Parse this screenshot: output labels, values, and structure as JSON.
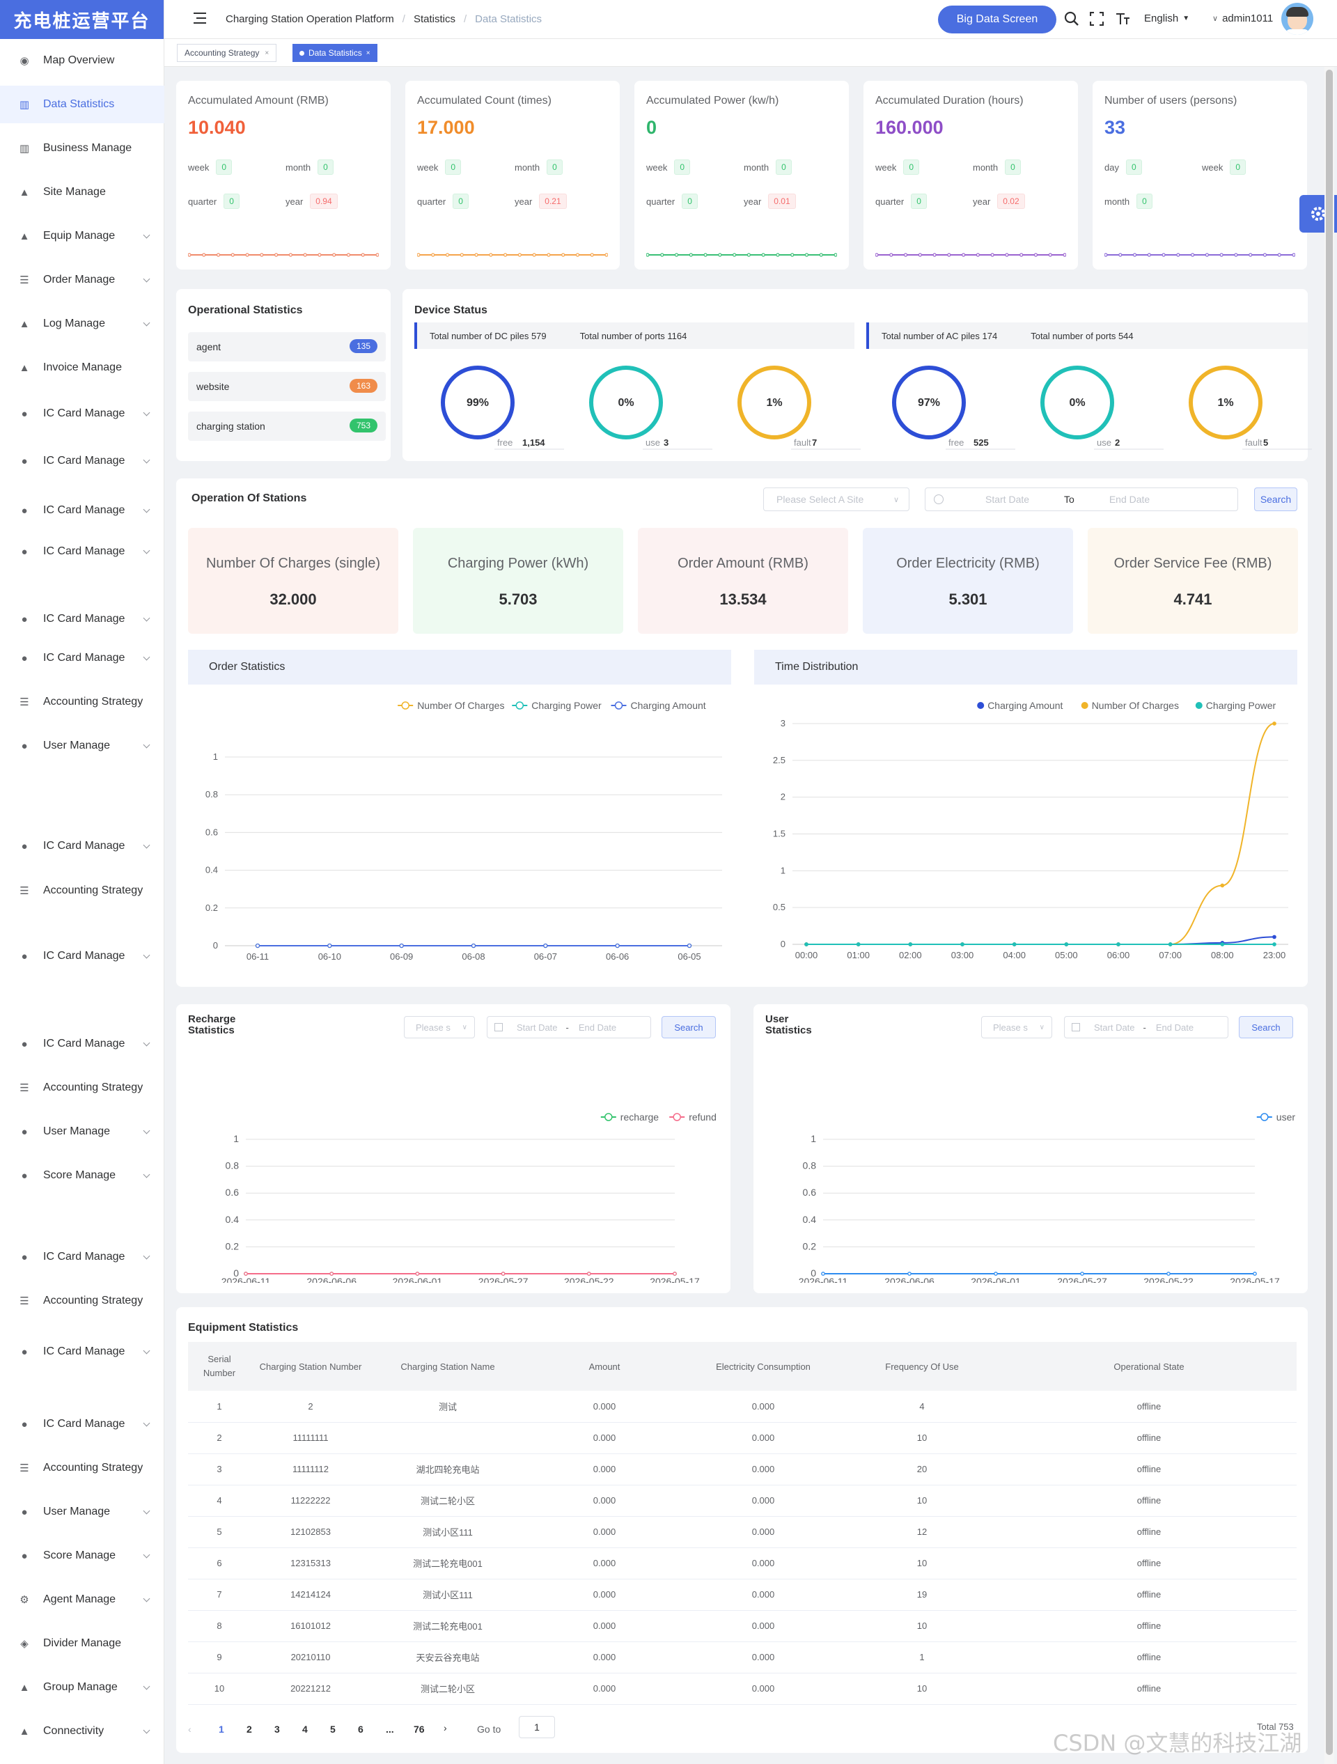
{
  "logo": "充电桩运营平台",
  "menu": [
    {
      "label": "Map Overview",
      "icon": "dashboard-icon",
      "chev": false,
      "y": 60
    },
    {
      "label": "Data Statistics",
      "icon": "chart-icon",
      "chev": false,
      "y": 123,
      "active": true
    },
    {
      "label": "Business Manage",
      "icon": "chart-icon",
      "chev": false,
      "y": 186
    },
    {
      "label": "Site Manage",
      "icon": "site-icon",
      "chev": false,
      "y": 249
    },
    {
      "label": "Equip Manage",
      "icon": "site-icon",
      "chev": true,
      "y": 312
    },
    {
      "label": "Order Manage",
      "icon": "list-icon",
      "chev": true,
      "y": 375
    },
    {
      "label": "Log Manage",
      "icon": "site-icon",
      "chev": true,
      "y": 438
    },
    {
      "label": "Invoice Manage",
      "icon": "site-icon",
      "chev": false,
      "y": 501
    },
    {
      "label": "IC Card Manage",
      "icon": "user-icon",
      "chev": true,
      "y": 567
    },
    {
      "label": "IC Card Manage",
      "icon": "user-icon",
      "chev": true,
      "y": 635
    },
    {
      "label": "IC Card Manage",
      "icon": "user-icon",
      "chev": true,
      "y": 706
    },
    {
      "label": "IC Card Manage",
      "icon": "user-icon",
      "chev": true,
      "y": 765
    },
    {
      "label": "IC Card Manage",
      "icon": "user-icon",
      "chev": true,
      "y": 862
    },
    {
      "label": "IC Card Manage",
      "icon": "user-icon",
      "chev": true,
      "y": 918
    },
    {
      "label": "Accounting Strategy",
      "icon": "list-icon",
      "chev": false,
      "y": 981
    },
    {
      "label": "User Manage",
      "icon": "user-icon",
      "chev": true,
      "y": 1044
    },
    {
      "label": "IC Card Manage",
      "icon": "user-icon",
      "chev": true,
      "y": 1188
    },
    {
      "label": "Accounting Strategy",
      "icon": "list-icon",
      "chev": false,
      "y": 1252
    },
    {
      "label": "IC Card Manage",
      "icon": "user-icon",
      "chev": true,
      "y": 1346
    },
    {
      "label": "IC Card Manage",
      "icon": "user-icon",
      "chev": true,
      "y": 1472
    },
    {
      "label": "Accounting Strategy",
      "icon": "list-icon",
      "chev": false,
      "y": 1535
    },
    {
      "label": "User Manage",
      "icon": "user-icon",
      "chev": true,
      "y": 1598
    },
    {
      "label": "Score Manage",
      "icon": "user-icon",
      "chev": true,
      "y": 1661
    },
    {
      "label": "IC Card Manage",
      "icon": "user-icon",
      "chev": true,
      "y": 1778
    },
    {
      "label": "Accounting Strategy",
      "icon": "list-icon",
      "chev": false,
      "y": 1841
    },
    {
      "label": "IC Card Manage",
      "icon": "user-icon",
      "chev": true,
      "y": 1914
    },
    {
      "label": "IC Card Manage",
      "icon": "user-icon",
      "chev": true,
      "y": 2018
    },
    {
      "label": "Accounting Strategy",
      "icon": "list-icon",
      "chev": false,
      "y": 2081
    },
    {
      "label": "User Manage",
      "icon": "user-icon",
      "chev": true,
      "y": 2144
    },
    {
      "label": "Score Manage",
      "icon": "user-icon",
      "chev": true,
      "y": 2207
    },
    {
      "label": "Agent Manage",
      "icon": "gear-icon",
      "chev": true,
      "y": 2270
    },
    {
      "label": "Divider Manage",
      "icon": "shield-icon",
      "chev": false,
      "y": 2333
    },
    {
      "label": "Group Manage",
      "icon": "site-icon",
      "chev": true,
      "y": 2396
    },
    {
      "label": "Connectivity",
      "icon": "site-icon",
      "chev": true,
      "y": 2459
    }
  ],
  "header": {
    "crumb1": "Charging Station Operation Platform",
    "crumb2": "Statistics",
    "crumb3": "Data Statistics",
    "big_data": "Big Data Screen",
    "lang": "English",
    "user": "admin1011"
  },
  "tabs": [
    {
      "label": "Accounting Strategy"
    },
    {
      "label": "Data Statistics"
    }
  ],
  "summary": [
    {
      "title": "Accumulated Amount (RMB)",
      "value": "10.040",
      "color": "#f0603a",
      "l1a": "week",
      "v1a": "0",
      "l1b": "month",
      "v1b": "0",
      "l2a": "quarter",
      "v2a": "0",
      "l2b": "year",
      "v2b": "0.94",
      "line": "#f08a6a"
    },
    {
      "title": "Accumulated Count (times)",
      "value": "17.000",
      "color": "#f08c2a",
      "l1a": "week",
      "v1a": "0",
      "l1b": "month",
      "v1b": "0",
      "l2a": "quarter",
      "v2a": "0",
      "l2b": "year",
      "v2b": "0.21",
      "line": "#f5a34a"
    },
    {
      "title": "Accumulated Power (kw/h)",
      "value": "0",
      "color": "#2fb56c",
      "l1a": "week",
      "v1a": "0",
      "l1b": "month",
      "v1b": "0",
      "l2a": "quarter",
      "v2a": "0",
      "l2b": "year",
      "v2b": "0.01",
      "line": "#39bf75"
    },
    {
      "title": "Accumulated Duration (hours)",
      "value": "160.000",
      "color": "#8e4ec7",
      "l1a": "week",
      "v1a": "0",
      "l1b": "month",
      "v1b": "0",
      "l2a": "quarter",
      "v2a": "0",
      "l2b": "year",
      "v2b": "0.02",
      "line": "#9a62cf"
    },
    {
      "title": "Number of users (persons)",
      "value": "33",
      "color": "#4a6ee0",
      "l1a": "day",
      "v1a": "0",
      "l1b": "week",
      "v1b": "0",
      "l2a": "month",
      "v2a": "0",
      "l2b": "",
      "v2b": "",
      "line": "#8b6ad8"
    }
  ],
  "ops": {
    "title": "Operational Statistics",
    "items": [
      {
        "label": "agent",
        "count": "135",
        "color": "#4a6ee0"
      },
      {
        "label": "website",
        "count": "163",
        "color": "#f08c4a"
      },
      {
        "label": "charging station",
        "count": "753",
        "color": "#32c36c"
      }
    ]
  },
  "device": {
    "title": "Device Status",
    "dc_piles": "Total number of DC piles 579",
    "dc_ports": "Total number of ports 1164",
    "ac_piles": "Total number of AC piles 174",
    "ac_ports": "Total number of ports 544",
    "rings": [
      {
        "pct": "99%",
        "frac": 0.99,
        "color": "#2d4ed6",
        "label": "free",
        "num": "1,154"
      },
      {
        "pct": "0%",
        "frac": 0.0,
        "color": "#20c0b8",
        "label": "use",
        "num": "3"
      },
      {
        "pct": "1%",
        "frac": 0.01,
        "color": "#f0b429",
        "label": "fault",
        "num": "7"
      },
      {
        "pct": "97%",
        "frac": 0.97,
        "color": "#2d4ed6",
        "label": "free",
        "num": "525"
      },
      {
        "pct": "0%",
        "frac": 0.0,
        "color": "#20c0b8",
        "label": "use",
        "num": "2"
      },
      {
        "pct": "1%",
        "frac": 0.01,
        "color": "#f0b429",
        "label": "fault",
        "num": "5"
      }
    ]
  },
  "stations": {
    "title": "Operation Of Stations",
    "site_placeholder": "Please Select A Site",
    "start": "Start Date",
    "to": "To",
    "end": "End Date",
    "search": "Search",
    "stats": [
      {
        "title": "Number Of Charges (single)",
        "value": "32.000",
        "bg": "#fdf2ef"
      },
      {
        "title": "Charging Power (kWh)",
        "value": "5.703",
        "bg": "#eefaf1"
      },
      {
        "title": "Order Amount (RMB)",
        "value": "13.534",
        "bg": "#fcf2f2"
      },
      {
        "title": "Order Electricity (RMB)",
        "value": "5.301",
        "bg": "#eef2fc"
      },
      {
        "title": "Order Service Fee (RMB)",
        "value": "4.741",
        "bg": "#fdf7ee"
      }
    ]
  },
  "order_stats": {
    "title": "Order Statistics"
  },
  "time_dist": {
    "title": "Time Distribution"
  },
  "recharge": {
    "title1": "Recharge",
    "title2": "Statistics",
    "placeholder": "Please s",
    "start": "Start Date",
    "end": "End Date",
    "search": "Search"
  },
  "user_stats": {
    "title1": "User",
    "title2": "Statistics",
    "placeholder": "Please s",
    "start": "Start Date",
    "end": "End Date",
    "search": "Search"
  },
  "chart_data": [
    {
      "type": "line",
      "title": "Order Statistics",
      "x": [
        "06-11",
        "06-10",
        "06-09",
        "06-08",
        "06-07",
        "06-06",
        "06-05"
      ],
      "ylim": [
        0,
        1
      ],
      "yticks": [
        "0",
        "0.2",
        "0.4",
        "0.6",
        "0.8",
        "1"
      ],
      "series": [
        {
          "name": "Number Of Charges",
          "color": "#f0b429",
          "values": [
            0,
            0,
            0,
            0,
            0,
            0,
            0
          ]
        },
        {
          "name": "Charging Power",
          "color": "#20c0b8",
          "values": [
            0,
            0,
            0,
            0,
            0,
            0,
            0
          ]
        },
        {
          "name": "Charging Amount",
          "color": "#4a6ee0",
          "values": [
            0,
            0,
            0,
            0,
            0,
            0,
            0
          ]
        }
      ]
    },
    {
      "type": "line",
      "title": "Time Distribution",
      "x": [
        "00:00",
        "01:00",
        "02:00",
        "03:00",
        "04:00",
        "05:00",
        "06:00",
        "07:00",
        "08:00",
        "23:00"
      ],
      "ylim": [
        0,
        3
      ],
      "yticks": [
        "0",
        "0.5",
        "1",
        "1.5",
        "2",
        "2.5",
        "3"
      ],
      "series": [
        {
          "name": "Charging Amount",
          "color": "#2d4ed6",
          "values": [
            0,
            0,
            0,
            0,
            0,
            0,
            0,
            0,
            0.02,
            0.1
          ]
        },
        {
          "name": "Number Of Charges",
          "color": "#f0b429",
          "values": [
            0,
            0,
            0,
            0,
            0,
            0,
            0,
            0,
            0.8,
            3
          ]
        },
        {
          "name": "Charging Power",
          "color": "#20c0b8",
          "values": [
            0,
            0,
            0,
            0,
            0,
            0,
            0,
            0,
            0,
            0
          ]
        }
      ]
    },
    {
      "type": "line",
      "title": "Recharge Statistics",
      "x": [
        "2026-06-11",
        "2026-06-06",
        "2026-06-01",
        "2026-05-27",
        "2026-05-22",
        "2026-05-17"
      ],
      "ylim": [
        0,
        1
      ],
      "yticks": [
        "0",
        "0.2",
        "0.4",
        "0.6",
        "0.8",
        "1"
      ],
      "series": [
        {
          "name": "recharge",
          "color": "#32c36c",
          "values": [
            0,
            0,
            0,
            0,
            0,
            0
          ]
        },
        {
          "name": "refund",
          "color": "#f56c8a",
          "values": [
            0,
            0,
            0,
            0,
            0,
            0
          ]
        }
      ]
    },
    {
      "type": "line",
      "title": "User Statistics",
      "x": [
        "2026-06-11",
        "2026-06-06",
        "2026-06-01",
        "2026-05-27",
        "2026-05-22",
        "2026-05-17"
      ],
      "ylim": [
        0,
        1
      ],
      "yticks": [
        "0",
        "0.2",
        "0.4",
        "0.6",
        "0.8",
        "1"
      ],
      "series": [
        {
          "name": "user",
          "color": "#2d8cf0",
          "values": [
            0,
            0,
            0,
            0,
            0,
            0
          ]
        }
      ]
    }
  ],
  "equipment": {
    "title": "Equipment Statistics",
    "headers": [
      "Serial Number",
      "Charging Station Number",
      "Charging Station Name",
      "Amount",
      "Electricity Consumption",
      "Frequency Of Use",
      "Operational State"
    ],
    "rows": [
      [
        "1",
        "2",
        "测试",
        "0.000",
        "0.000",
        "4",
        "offline"
      ],
      [
        "2",
        "11111111",
        "",
        "0.000",
        "0.000",
        "10",
        "offline"
      ],
      [
        "3",
        "11111112",
        "湖北四轮充电站",
        "0.000",
        "0.000",
        "20",
        "offline"
      ],
      [
        "4",
        "11222222",
        "测试二轮小区",
        "0.000",
        "0.000",
        "10",
        "offline"
      ],
      [
        "5",
        "12102853",
        "测试小区111",
        "0.000",
        "0.000",
        "12",
        "offline"
      ],
      [
        "6",
        "12315313",
        "测试二轮充电001",
        "0.000",
        "0.000",
        "10",
        "offline"
      ],
      [
        "7",
        "14214124",
        "测试小区111",
        "0.000",
        "0.000",
        "19",
        "offline"
      ],
      [
        "8",
        "16101012",
        "测试二轮充电001",
        "0.000",
        "0.000",
        "10",
        "offline"
      ],
      [
        "9",
        "20210110",
        "天安云谷充电站",
        "0.000",
        "0.000",
        "1",
        "offline"
      ],
      [
        "10",
        "20221212",
        "测试二轮小区",
        "0.000",
        "0.000",
        "10",
        "offline"
      ]
    ]
  },
  "pagination": {
    "pages": [
      "1",
      "2",
      "3",
      "4",
      "5",
      "6",
      "...",
      "76"
    ],
    "goto": "Go to",
    "goto_value": "1",
    "total": "Total 753"
  },
  "watermark": "CSDN @文慧的科技江湖"
}
